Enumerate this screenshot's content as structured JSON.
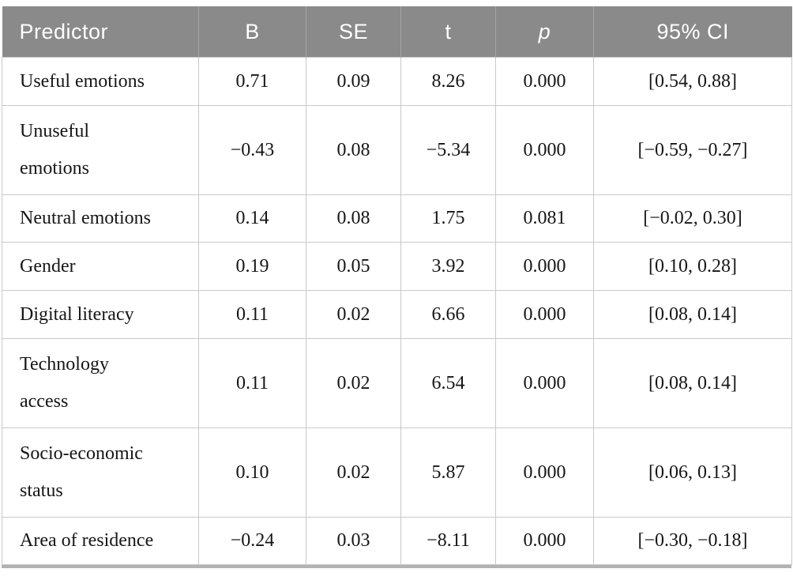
{
  "table": {
    "name": "Regression results table",
    "headers": {
      "predictor": "Predictor",
      "b": "B",
      "se": "SE",
      "t": "t",
      "p": "p",
      "ci": "95% CI"
    },
    "rows": [
      {
        "predictor": "Useful emotions",
        "b": "0.71",
        "se": "0.09",
        "t": "8.26",
        "p": "0.000",
        "ci": "[0.54, 0.88]"
      },
      {
        "predictor": "Unuseful\nemotions",
        "b": "−0.43",
        "se": "0.08",
        "t": "−5.34",
        "p": "0.000",
        "ci": "[−0.59, −0.27]"
      },
      {
        "predictor": "Neutral emotions",
        "b": "0.14",
        "se": "0.08",
        "t": "1.75",
        "p": "0.081",
        "ci": "[−0.02, 0.30]"
      },
      {
        "predictor": "Gender",
        "b": "0.19",
        "se": "0.05",
        "t": "3.92",
        "p": "0.000",
        "ci": "[0.10, 0.28]"
      },
      {
        "predictor": "Digital literacy",
        "b": "0.11",
        "se": "0.02",
        "t": "6.66",
        "p": "0.000",
        "ci": "[0.08, 0.14]"
      },
      {
        "predictor": "Technology\naccess",
        "b": "0.11",
        "se": "0.02",
        "t": "6.54",
        "p": "0.000",
        "ci": "[0.08, 0.14]"
      },
      {
        "predictor": "Socio-economic\nstatus",
        "b": "0.10",
        "se": "0.02",
        "t": "5.87",
        "p": "0.000",
        "ci": "[0.06, 0.13]"
      },
      {
        "predictor": "Area of residence",
        "b": "−0.24",
        "se": "0.03",
        "t": "−8.11",
        "p": "0.000",
        "ci": "[−0.30, −0.18]"
      }
    ],
    "colors": {
      "header_background": "#8a8a8a",
      "header_text": "#ffffff",
      "grid_line": "#c9c9c9",
      "bottom_rule": "#b2b2b2",
      "body_text": "#161616"
    }
  }
}
